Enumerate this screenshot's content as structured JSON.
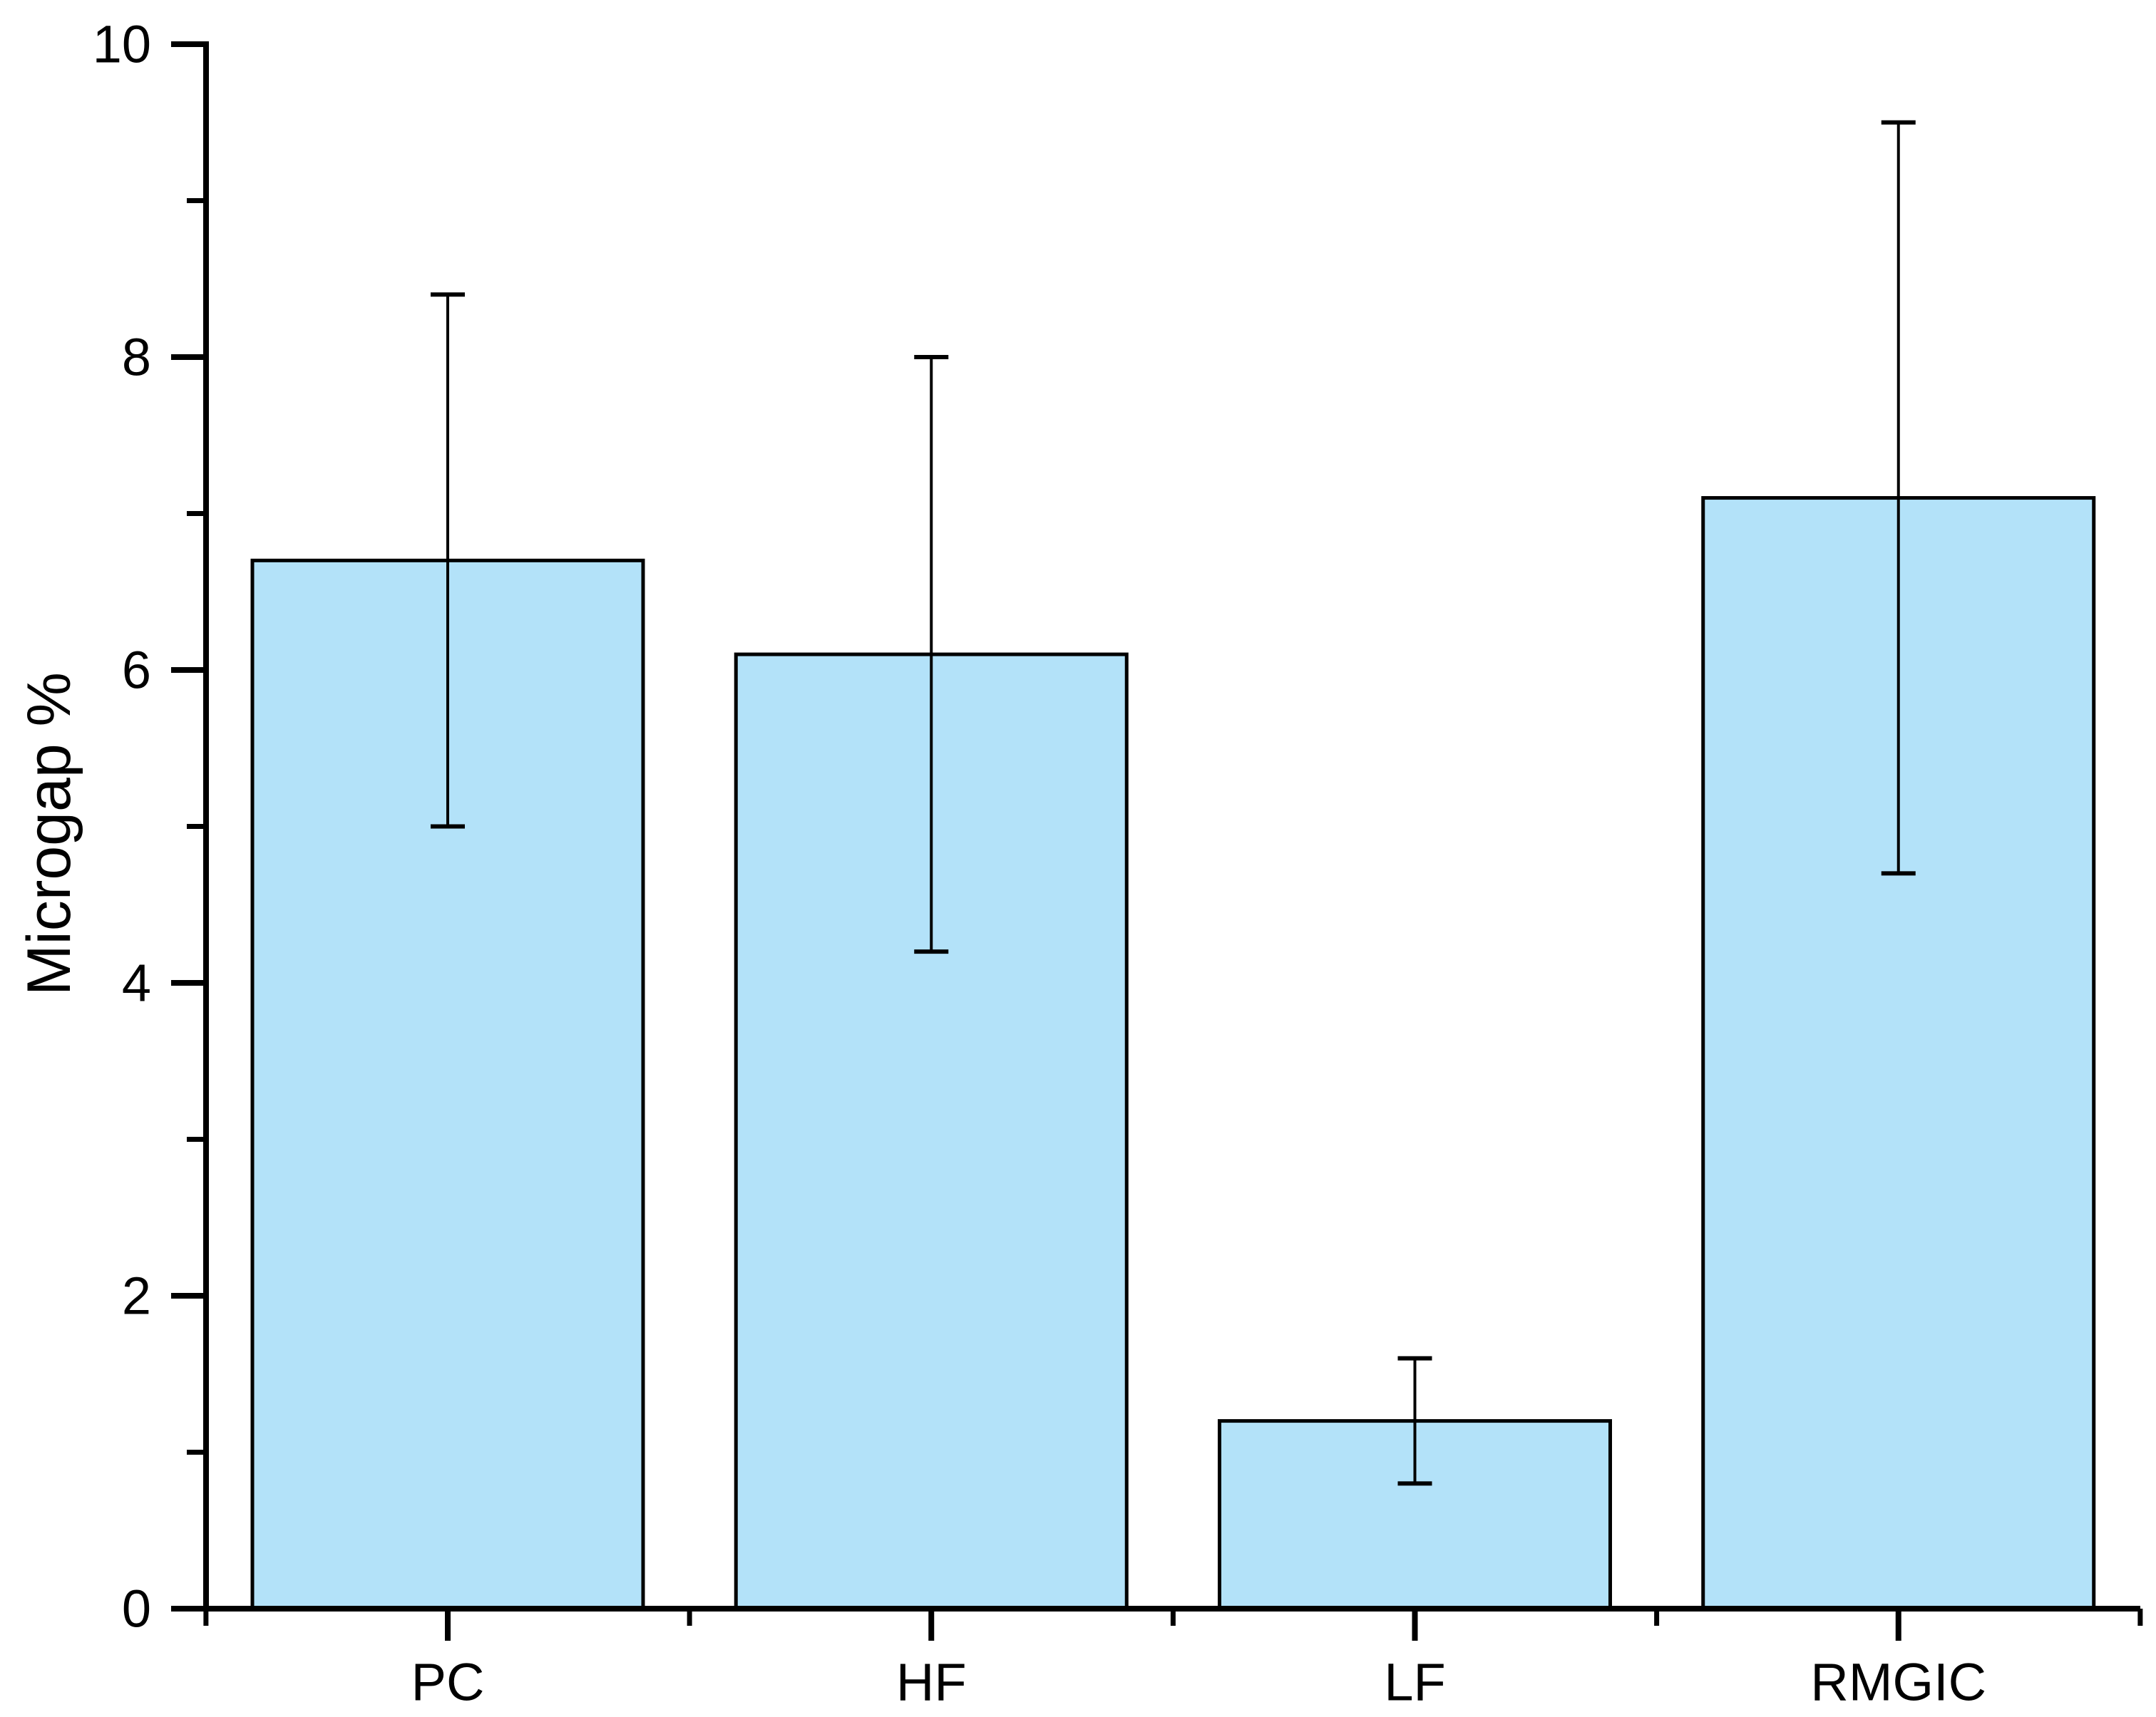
{
  "chart_data": {
    "type": "bar",
    "title": "",
    "xlabel": "",
    "ylabel": "Microgap %",
    "categories": [
      "PC",
      "HF",
      "LF",
      "RMGIC"
    ],
    "values": [
      6.7,
      6.1,
      1.2,
      7.1
    ],
    "errors": [
      1.7,
      1.9,
      0.4,
      2.4
    ],
    "error_ranges": [
      [
        5.0,
        8.4
      ],
      [
        4.2,
        8.0
      ],
      [
        0.8,
        1.6
      ],
      [
        4.7,
        9.5
      ]
    ],
    "ylim": [
      0,
      10
    ],
    "yticks": [
      0,
      2,
      4,
      6,
      8,
      10
    ],
    "ytick_minor_step": 1,
    "grid": false,
    "legend": "none",
    "colors": {
      "bar_fill": "#B3E2F9",
      "bar_stroke": "#000000",
      "axis": "#000000",
      "error_bar": "#000000",
      "background": "#FFFFFF",
      "text": "#000000"
    }
  }
}
